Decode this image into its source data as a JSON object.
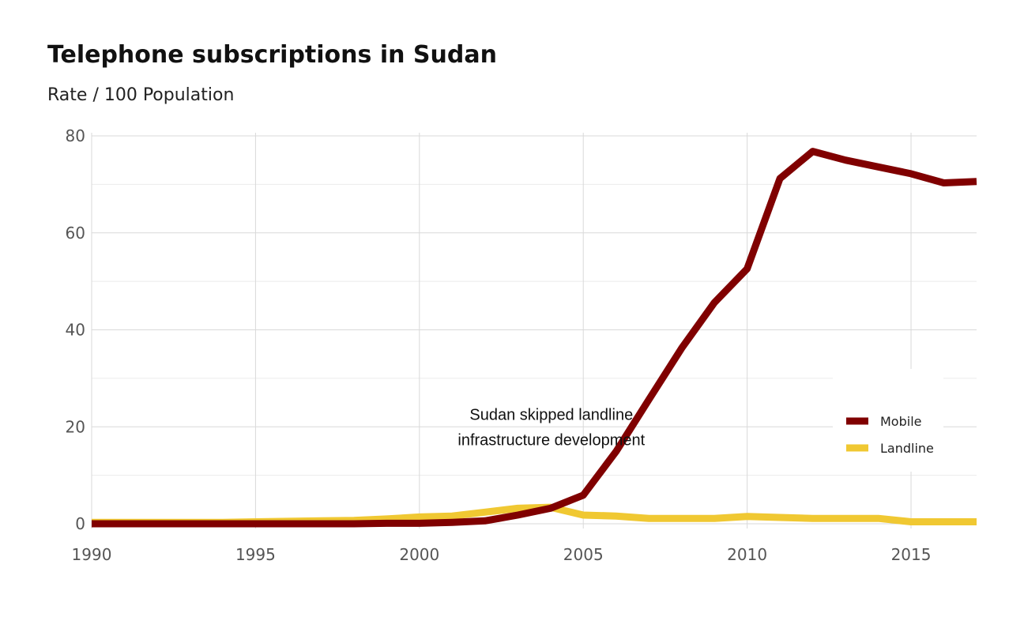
{
  "chart_data": {
    "type": "line",
    "title": "Telephone subscriptions in Sudan",
    "subtitle": "Rate / 100 Population",
    "xlabel": "",
    "ylabel": "",
    "xlim": [
      1990,
      2017
    ],
    "ylim": [
      0,
      80
    ],
    "x_ticks": [
      "1990",
      "1995",
      "2000",
      "2005",
      "2010",
      "2015"
    ],
    "y_ticks": [
      "0",
      "20",
      "40",
      "60",
      "80"
    ],
    "grid": true,
    "legend_position": "right",
    "x": [
      1990,
      1991,
      1992,
      1993,
      1994,
      1995,
      1996,
      1997,
      1998,
      1999,
      2000,
      2001,
      2002,
      2003,
      2004,
      2005,
      2006,
      2007,
      2008,
      2009,
      2010,
      2011,
      2012,
      2013,
      2014,
      2015,
      2016,
      2017
    ],
    "series": [
      {
        "name": "Mobile",
        "color": "#800000",
        "values": [
          0,
          0,
          0,
          0,
          0,
          0,
          0,
          0,
          0,
          0.1,
          0.1,
          0.3,
          0.6,
          1.8,
          3.2,
          5.9,
          14.9,
          25.6,
          36.2,
          45.6,
          52.6,
          71.2,
          76.8,
          75.0,
          73.6,
          72.2,
          70.3,
          70.6
        ]
      },
      {
        "name": "Landline",
        "color": "#f0c832",
        "values": [
          0.3,
          0.3,
          0.3,
          0.3,
          0.3,
          0.4,
          0.5,
          0.6,
          0.7,
          1.0,
          1.4,
          1.6,
          2.4,
          3.2,
          3.4,
          1.8,
          1.6,
          1.1,
          1.1,
          1.1,
          1.5,
          1.3,
          1.1,
          1.1,
          1.1,
          0.4,
          0.4,
          0.4
        ]
      }
    ],
    "annotations": [
      {
        "text": [
          "Sudan skipped landline",
          "infrastructure development"
        ],
        "x": 2002,
        "y": 20
      }
    ]
  }
}
